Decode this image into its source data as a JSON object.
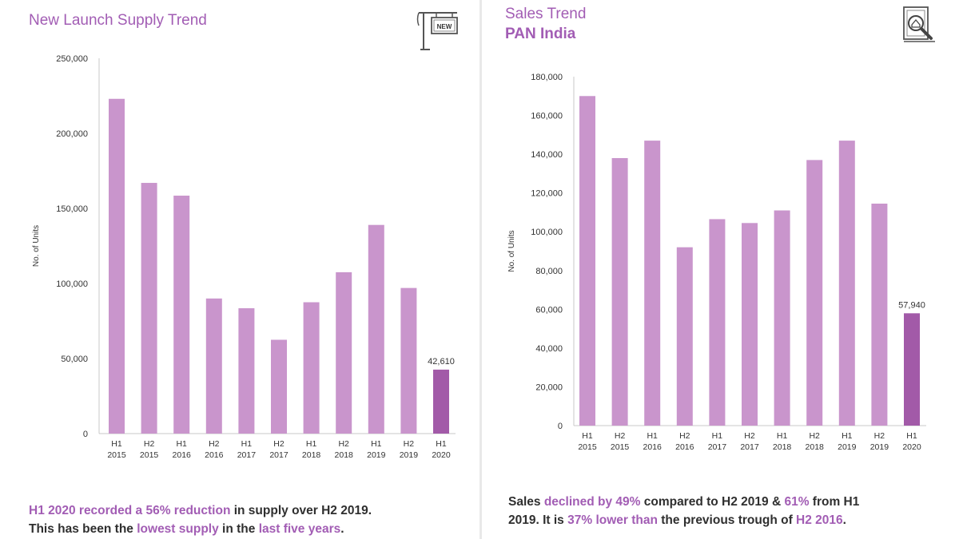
{
  "left": {
    "title": "New Launch Supply Trend",
    "caption": {
      "line1": [
        {
          "text": "H1 2020 recorded a 56% reduction",
          "hl": true
        },
        {
          "text": " in supply over H2 2019.",
          "hl": false
        }
      ],
      "line2": [
        {
          "text": "This has been the ",
          "hl": false
        },
        {
          "text": "lowest supply",
          "hl": true
        },
        {
          "text": " in the ",
          "hl": false
        },
        {
          "text": "last five years",
          "hl": true
        },
        {
          "text": ".",
          "hl": false
        }
      ]
    }
  },
  "right": {
    "title": "Sales Trend",
    "subtitle": "PAN India",
    "caption": {
      "line1": [
        {
          "text": "Sales ",
          "hl": false
        },
        {
          "text": "declined by 49%",
          "hl": true
        },
        {
          "text": " compared to H2 2019 & ",
          "hl": false
        },
        {
          "text": "61%",
          "hl": true
        },
        {
          "text": " from H1",
          "hl": false
        }
      ],
      "line2": [
        {
          "text": "2019. It is ",
          "hl": false
        },
        {
          "text": "37% lower than",
          "hl": true
        },
        {
          "text": " the previous trough of ",
          "hl": false
        },
        {
          "text": "H2 2016",
          "hl": true
        },
        {
          "text": ".",
          "hl": false
        }
      ]
    }
  },
  "icons": {
    "left": "new-sign-icon",
    "right": "property-search-icon",
    "new_label": "NEW"
  },
  "colors": {
    "bar": "#c995cc",
    "highlight_bar": "#a25aa8",
    "accent": "#a25db4"
  },
  "chart_data": [
    {
      "type": "bar",
      "title": "New Launch Supply Trend",
      "ylabel": "No. of Units",
      "xlabel": "",
      "ylim": [
        0,
        250000
      ],
      "yticks": [
        0,
        50000,
        100000,
        150000,
        200000,
        250000
      ],
      "ytick_labels": [
        "0",
        "50,000",
        "100,000",
        "150,000",
        "200,000",
        "250,000"
      ],
      "categories": [
        [
          "H1",
          "2015"
        ],
        [
          "H2",
          "2015"
        ],
        [
          "H1",
          "2016"
        ],
        [
          "H2",
          "2016"
        ],
        [
          "H1",
          "2017"
        ],
        [
          "H2",
          "2017"
        ],
        [
          "H1",
          "2018"
        ],
        [
          "H2",
          "2018"
        ],
        [
          "H1",
          "2019"
        ],
        [
          "H2",
          "2019"
        ],
        [
          "H1",
          "2020"
        ]
      ],
      "values": [
        223000,
        167000,
        158500,
        90000,
        83500,
        62500,
        87500,
        107500,
        139000,
        97000,
        42610
      ],
      "highlight_index": 10,
      "data_labels": {
        "10": "42,610"
      }
    },
    {
      "type": "bar",
      "title": "Sales Trend",
      "subtitle": "PAN India",
      "ylabel": "No. of Units",
      "xlabel": "",
      "ylim": [
        0,
        180000
      ],
      "yticks": [
        0,
        20000,
        40000,
        60000,
        80000,
        100000,
        120000,
        140000,
        160000,
        180000
      ],
      "ytick_labels": [
        "0",
        "20,000",
        "40,000",
        "60,000",
        "80,000",
        "100,000",
        "120,000",
        "140,000",
        "160,000",
        "180,000"
      ],
      "categories": [
        [
          "H1",
          "2015"
        ],
        [
          "H2",
          "2015"
        ],
        [
          "H1",
          "2016"
        ],
        [
          "H2",
          "2016"
        ],
        [
          "H1",
          "2017"
        ],
        [
          "H2",
          "2017"
        ],
        [
          "H1",
          "2018"
        ],
        [
          "H2",
          "2018"
        ],
        [
          "H1",
          "2019"
        ],
        [
          "H2",
          "2019"
        ],
        [
          "H1",
          "2020"
        ]
      ],
      "values": [
        170000,
        138000,
        147000,
        92000,
        106500,
        104500,
        111000,
        137000,
        147000,
        114500,
        57940
      ],
      "highlight_index": 10,
      "data_labels": {
        "10": "57,940"
      }
    }
  ]
}
